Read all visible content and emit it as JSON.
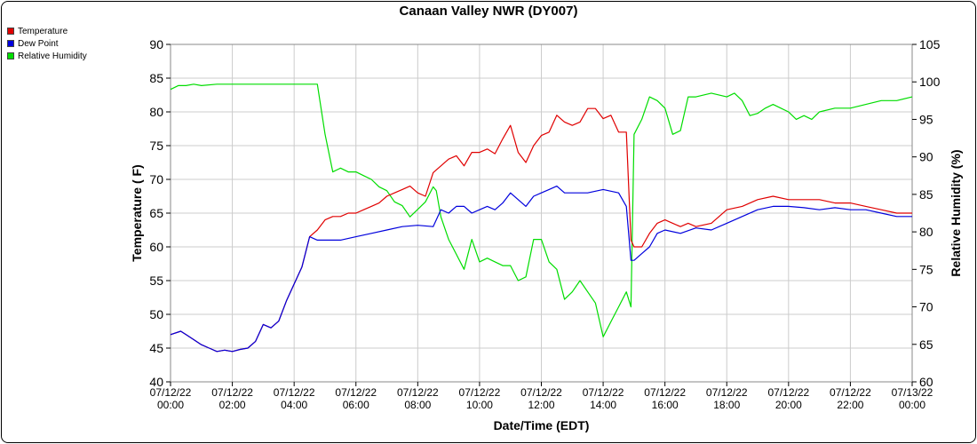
{
  "chart_data": {
    "type": "line",
    "title": "Canaan Valley NWR (DY007)",
    "xlabel": "Date/Time (EDT)",
    "ylabel_left": "Temperature ( F)",
    "ylabel_right": "Relative Humidity (%)",
    "xlim_hours": [
      0,
      24
    ],
    "ylim_left": [
      40,
      90
    ],
    "ylim_right": [
      60,
      105
    ],
    "yticks_left": [
      "40",
      "45",
      "50",
      "55",
      "60",
      "65",
      "70",
      "75",
      "80",
      "85",
      "90"
    ],
    "yticks_right": [
      "60",
      "65",
      "70",
      "75",
      "80",
      "85",
      "90",
      "95",
      "100",
      "105"
    ],
    "xticks": [
      {
        "date": "07/12/22",
        "time": "00:00"
      },
      {
        "date": "07/12/22",
        "time": "02:00"
      },
      {
        "date": "07/12/22",
        "time": "04:00"
      },
      {
        "date": "07/12/22",
        "time": "06:00"
      },
      {
        "date": "07/12/22",
        "time": "08:00"
      },
      {
        "date": "07/12/22",
        "time": "10:00"
      },
      {
        "date": "07/12/22",
        "time": "12:00"
      },
      {
        "date": "07/12/22",
        "time": "14:00"
      },
      {
        "date": "07/12/22",
        "time": "16:00"
      },
      {
        "date": "07/12/22",
        "time": "18:00"
      },
      {
        "date": "07/12/22",
        "time": "20:00"
      },
      {
        "date": "07/12/22",
        "time": "22:00"
      },
      {
        "date": "07/13/22",
        "time": "00:00"
      }
    ],
    "grid": true,
    "legend_position": "top-left",
    "series": [
      {
        "name": "Temperature",
        "color": "#e00000",
        "axis": "left",
        "x": [
          0,
          0.33,
          0.5,
          0.67,
          1,
          1.25,
          1.5,
          1.75,
          2,
          2.25,
          2.5,
          2.75,
          3,
          3.25,
          3.5,
          3.75,
          4,
          4.25,
          4.5,
          4.75,
          5,
          5.25,
          5.5,
          5.75,
          6,
          6.25,
          6.5,
          6.75,
          7,
          7.25,
          7.5,
          7.75,
          8,
          8.25,
          8.5,
          8.75,
          9,
          9.25,
          9.5,
          9.75,
          10,
          10.25,
          10.5,
          10.75,
          11,
          11.25,
          11.5,
          11.75,
          12,
          12.25,
          12.5,
          12.75,
          13,
          13.25,
          13.5,
          13.75,
          14,
          14.25,
          14.5,
          14.75,
          14.9,
          15,
          15.25,
          15.5,
          15.75,
          16,
          16.25,
          16.5,
          16.75,
          17,
          17.5,
          18,
          18.5,
          19,
          19.5,
          20,
          20.5,
          21,
          21.5,
          22,
          22.5,
          23,
          23.5,
          24
        ],
        "y": [
          47,
          47.5,
          47,
          46.5,
          45.5,
          45,
          44.5,
          44.7,
          44.5,
          44.8,
          45,
          46,
          48.5,
          48,
          49,
          52,
          54.5,
          57,
          61.5,
          62.5,
          64,
          64.5,
          64.5,
          65,
          65,
          65.5,
          66,
          66.5,
          67.5,
          68,
          68.5,
          69,
          68,
          67.5,
          71,
          72,
          73,
          73.5,
          72,
          74,
          74,
          74.5,
          73.8,
          76,
          78,
          74,
          72.5,
          75,
          76.5,
          77,
          79.5,
          78.5,
          78,
          78.5,
          80.5,
          80.5,
          79,
          79.5,
          77,
          77,
          61,
          60,
          60,
          62,
          63.5,
          64,
          63.5,
          63,
          63.5,
          63,
          63.5,
          65.5,
          66,
          67,
          67.5,
          67,
          67,
          67,
          66.5,
          66.5,
          66,
          65.5,
          65,
          65
        ]
      },
      {
        "name": "Dew Point",
        "color": "#0000dd",
        "axis": "left",
        "x": [
          0,
          0.33,
          0.5,
          0.67,
          1,
          1.25,
          1.5,
          1.75,
          2,
          2.25,
          2.5,
          2.75,
          3,
          3.25,
          3.5,
          3.75,
          4,
          4.25,
          4.5,
          4.75,
          5,
          5.5,
          6,
          6.5,
          7,
          7.5,
          8,
          8.5,
          8.75,
          9,
          9.25,
          9.5,
          9.75,
          10,
          10.25,
          10.5,
          10.75,
          11,
          11.25,
          11.5,
          11.75,
          12,
          12.25,
          12.5,
          12.75,
          13,
          13.5,
          14,
          14.5,
          14.75,
          14.9,
          15,
          15.25,
          15.5,
          15.75,
          16,
          16.5,
          17,
          17.5,
          18,
          18.5,
          19,
          19.5,
          20,
          20.5,
          21,
          21.5,
          22,
          22.5,
          23,
          23.5,
          24
        ],
        "y": [
          47,
          47.5,
          47,
          46.5,
          45.5,
          45,
          44.5,
          44.7,
          44.5,
          44.8,
          45,
          46,
          48.5,
          48,
          49,
          52,
          54.5,
          57,
          61.5,
          61,
          61,
          61,
          61.5,
          62,
          62.5,
          63,
          63.2,
          63,
          65.5,
          65,
          66,
          66,
          65,
          65.5,
          66,
          65.5,
          66.5,
          68,
          67,
          66,
          67.5,
          68,
          68.5,
          69,
          68,
          68,
          68,
          68.5,
          68,
          66,
          58,
          58,
          59,
          60,
          62,
          62.5,
          62,
          62.8,
          62.5,
          63.5,
          64.5,
          65.5,
          66,
          66,
          65.8,
          65.5,
          65.8,
          65.5,
          65.5,
          65,
          64.5,
          64.5
        ]
      },
      {
        "name": "Relative Humidity",
        "color": "#00dd00",
        "axis": "right",
        "x": [
          0,
          0.25,
          0.5,
          0.75,
          1,
          1.5,
          2,
          2.5,
          3,
          3.5,
          4,
          4.5,
          4.75,
          5,
          5.25,
          5.5,
          5.75,
          6,
          6.25,
          6.5,
          6.75,
          7,
          7.25,
          7.5,
          7.75,
          8,
          8.25,
          8.5,
          8.6,
          8.75,
          9,
          9.25,
          9.5,
          9.75,
          10,
          10.25,
          10.5,
          10.75,
          11,
          11.25,
          11.5,
          11.75,
          12,
          12.25,
          12.5,
          12.75,
          13,
          13.25,
          13.5,
          13.75,
          14,
          14.25,
          14.5,
          14.75,
          14.9,
          15,
          15.25,
          15.5,
          15.75,
          16,
          16.25,
          16.5,
          16.75,
          17,
          17.5,
          18,
          18.25,
          18.5,
          18.75,
          19,
          19.25,
          19.5,
          19.75,
          20,
          20.25,
          20.5,
          20.75,
          21,
          21.5,
          22,
          22.5,
          23,
          23.5,
          24
        ],
        "y": [
          99,
          99.5,
          99.5,
          99.7,
          99.5,
          99.7,
          99.7,
          99.7,
          99.7,
          99.7,
          99.7,
          99.7,
          99.7,
          93,
          88,
          88.5,
          88,
          88,
          87.5,
          87,
          86,
          85.5,
          84,
          83.5,
          82,
          83,
          84,
          86,
          85.5,
          82,
          79,
          77,
          75,
          79,
          76,
          76.5,
          76,
          75.5,
          75.5,
          73.5,
          74,
          79,
          79,
          76,
          75,
          71,
          72,
          73.5,
          72,
          70.5,
          66,
          68,
          70,
          72,
          70,
          93,
          95,
          98,
          97.5,
          96.5,
          93,
          93.5,
          98,
          98,
          98.5,
          98,
          98.5,
          97.5,
          95.5,
          95.8,
          96.5,
          97,
          96.5,
          96,
          95,
          95.5,
          95,
          96,
          96.5,
          96.5,
          97,
          97.5,
          97.5,
          98
        ]
      }
    ]
  }
}
